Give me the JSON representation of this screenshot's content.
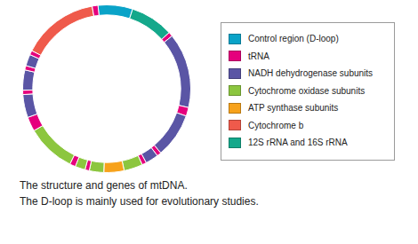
{
  "chart_data": {
    "type": "doughnut",
    "categories": [
      "Control region (D-loop)",
      "tRNA",
      "NADH dehydrogenase subunits",
      "Cytochrome oxidase subunits",
      "ATP synthase subunits",
      "Cytochrome b",
      "12S rRNA and 16S rRNA"
    ],
    "colors": [
      "#0aa3c8",
      "#e5007d",
      "#5a55a5",
      "#8cc63f",
      "#f7a21b",
      "#ef5a4b",
      "#14a88b"
    ],
    "segments": [
      {
        "category": "Control region (D-loop)",
        "value": 24
      },
      {
        "category": "12S rRNA and 16S rRNA",
        "value": 30
      },
      {
        "category": "tRNA",
        "value": 3
      },
      {
        "category": "NADH dehydrogenase subunits",
        "value": 52
      },
      {
        "category": "tRNA",
        "value": 6
      },
      {
        "category": "NADH dehydrogenase subunits",
        "value": 31
      },
      {
        "category": "tRNA",
        "value": 3
      },
      {
        "category": "NADH dehydrogenase subunits",
        "value": 9
      },
      {
        "category": "tRNA",
        "value": 3
      },
      {
        "category": "Cytochrome oxidase subunits",
        "value": 13
      },
      {
        "category": "ATP synthase subunits",
        "value": 14
      },
      {
        "category": "Cytochrome oxidase subunits",
        "value": 10
      },
      {
        "category": "tRNA",
        "value": 3
      },
      {
        "category": "Cytochrome oxidase subunits",
        "value": 7
      },
      {
        "category": "tRNA",
        "value": 4
      },
      {
        "category": "Cytochrome oxidase subunits",
        "value": 34
      },
      {
        "category": "tRNA",
        "value": 10
      },
      {
        "category": "NADH dehydrogenase subunits",
        "value": 16
      },
      {
        "category": "tRNA",
        "value": 3
      },
      {
        "category": "NADH dehydrogenase subunits",
        "value": 14
      },
      {
        "category": "tRNA",
        "value": 3
      },
      {
        "category": "NADH dehydrogenase subunits",
        "value": 8
      },
      {
        "category": "tRNA",
        "value": 3
      },
      {
        "category": "Cytochrome b",
        "value": 53
      },
      {
        "category": "tRNA",
        "value": 4
      }
    ],
    "legend": "right",
    "annotations": [
      "The structure and genes of mtDNA.",
      "The D-loop is mainly used for evolutionary studies."
    ]
  }
}
